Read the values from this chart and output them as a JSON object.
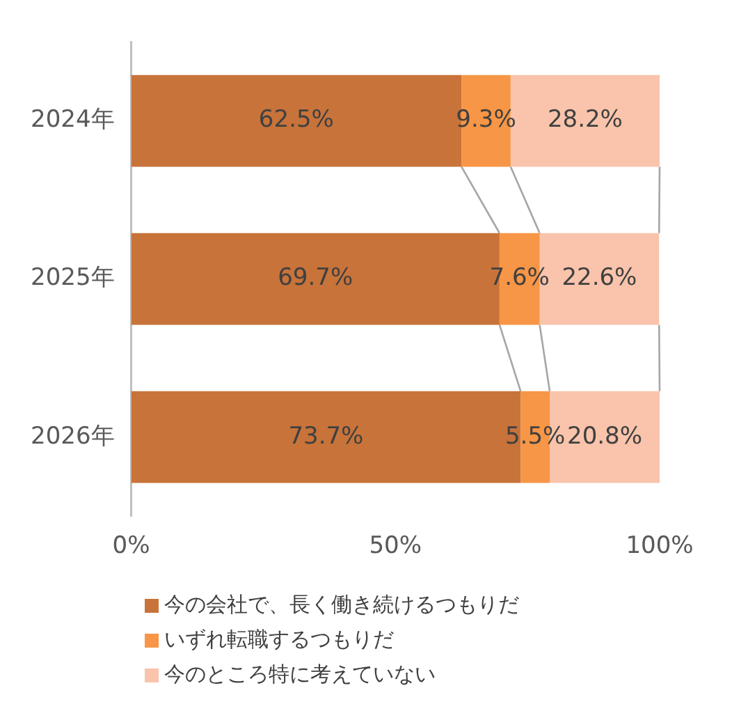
{
  "chart_data": {
    "type": "bar",
    "orientation": "horizontal",
    "stacked": true,
    "categories": [
      "2024年",
      "2025年",
      "2026年"
    ],
    "series": [
      {
        "name": "今の会社で、長く働き続けるつもりだ",
        "color": "#c8733a",
        "values": [
          62.5,
          69.7,
          73.7
        ],
        "value_labels": [
          "62.5%",
          "69.7%",
          "73.7%"
        ]
      },
      {
        "name": "いずれ転職するつもりだ",
        "color": "#f79646",
        "values": [
          9.3,
          7.6,
          5.5
        ],
        "value_labels": [
          "9.3%",
          "7.6%",
          "5.5%"
        ]
      },
      {
        "name": "今のところ特に考えていない",
        "color": "#f9c4ab",
        "values": [
          28.2,
          22.6,
          20.8
        ],
        "value_labels": [
          "28.2%",
          "22.6%",
          "20.8%"
        ]
      }
    ],
    "xlim": [
      0,
      100
    ],
    "xticks": [
      {
        "value": 0,
        "label": "0%"
      },
      {
        "value": 50,
        "label": "50%"
      },
      {
        "value": 100,
        "label": "100%"
      }
    ],
    "grid": false,
    "legend": "bottom"
  }
}
